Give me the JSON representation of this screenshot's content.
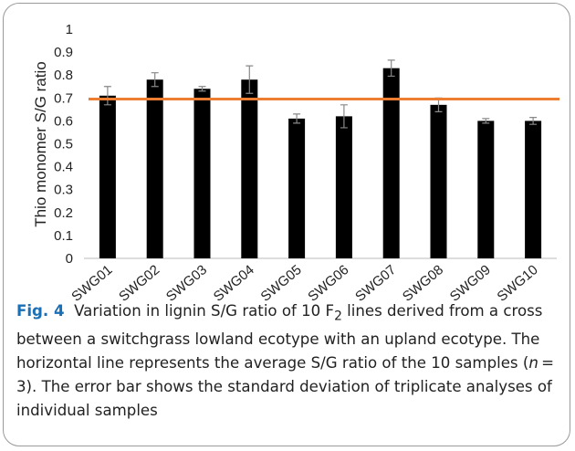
{
  "chart_data": {
    "type": "bar",
    "ylabel": "Thio monomer S/G ratio",
    "categories": [
      "SWG01",
      "SWG02",
      "SWG03",
      "SWG04",
      "SWG05",
      "SWG06",
      "SWG07",
      "SWG08",
      "SWG09",
      "SWG10"
    ],
    "values": [
      0.71,
      0.78,
      0.74,
      0.78,
      0.61,
      0.62,
      0.83,
      0.67,
      0.6,
      0.6
    ],
    "errors": [
      0.04,
      0.03,
      0.01,
      0.06,
      0.02,
      0.05,
      0.035,
      0.03,
      0.01,
      0.015
    ],
    "color": "#000000",
    "average_line": {
      "value": 0.695,
      "color": "#ed7d31"
    },
    "ylim": [
      0,
      1
    ],
    "yticks": [
      0,
      0.1,
      0.2,
      0.3,
      0.4,
      0.5,
      0.6,
      0.7,
      0.8,
      0.9,
      1
    ],
    "grid": false
  },
  "caption": {
    "label": "Fig. 4",
    "parts": [
      "Variation in lignin S/G ratio of 10 F",
      "2",
      " lines derived from a cross between a switchgrass lowland ecotype with an upland ecotype. The horizontal line represents the average S/G ratio of the 10 samples (",
      "n",
      " = 3). The error bar shows the standard deviation of triplicate analyses of individual samples"
    ]
  }
}
